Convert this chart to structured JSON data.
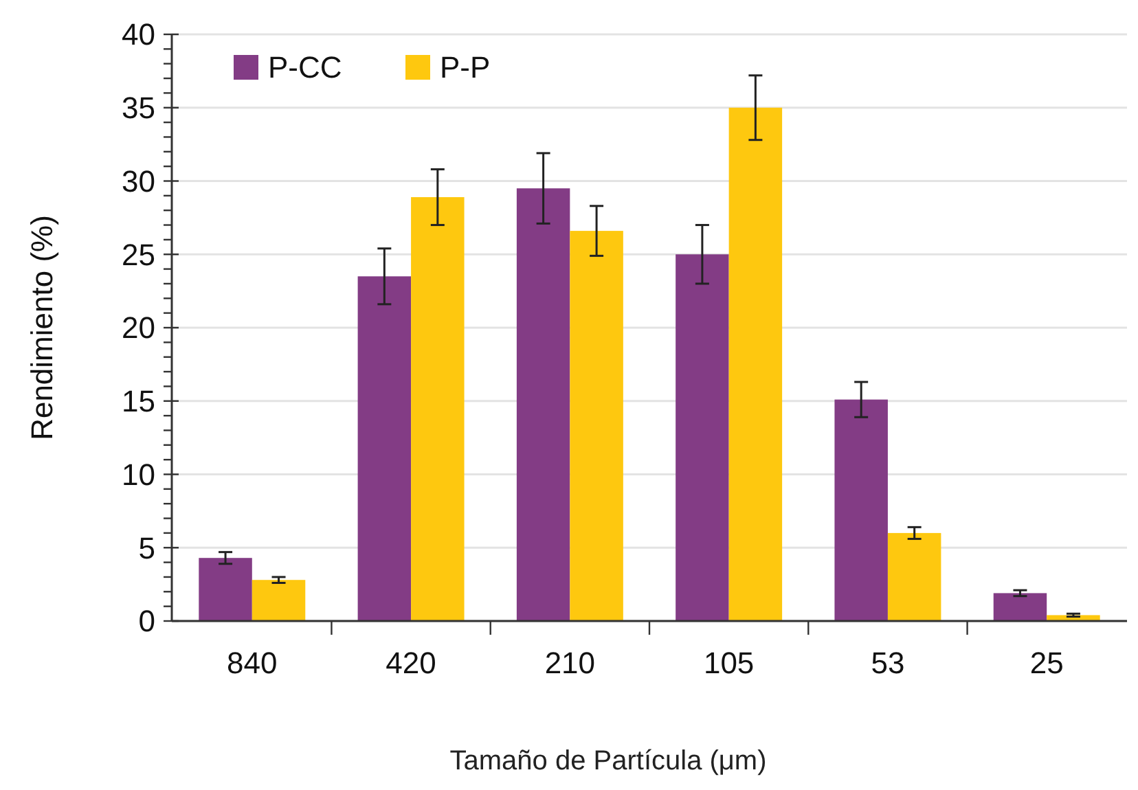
{
  "chart_data": {
    "type": "bar",
    "xlabel": "Tamaño de Partícula (μm)",
    "ylabel": "Rendimiento  (%)",
    "categories": [
      "840",
      "420",
      "210",
      "105",
      "53",
      "25"
    ],
    "series": [
      {
        "name": "P-CC",
        "color": "#833c85",
        "values": [
          4.3,
          23.5,
          29.5,
          25.0,
          15.1,
          1.9
        ],
        "errors": [
          0.4,
          1.9,
          2.4,
          2.0,
          1.2,
          0.2
        ]
      },
      {
        "name": "P-P",
        "color": "#fec80f",
        "values": [
          2.8,
          28.9,
          26.6,
          35.0,
          6.0,
          0.4
        ],
        "errors": [
          0.2,
          1.9,
          1.7,
          2.2,
          0.4,
          0.1
        ]
      }
    ],
    "ylim": [
      0,
      40
    ],
    "yticks": [
      0,
      {
        "value": 1,
        "label": null
      },
      {
        "value": 2,
        "label": null
      },
      {
        "value": 3,
        "label": null
      },
      {
        "value": 4,
        "label": null
      },
      5,
      {
        "value": 6,
        "label": null
      },
      {
        "value": 7,
        "label": null
      },
      {
        "value": 8,
        "label": null
      },
      {
        "value": 9,
        "label": null
      },
      10,
      {
        "value": 11,
        "label": null
      },
      {
        "value": 12,
        "label": null
      },
      {
        "value": 13,
        "label": null
      },
      {
        "value": 14,
        "label": null
      },
      15,
      {
        "value": 16,
        "label": null
      },
      {
        "value": 17,
        "label": null
      },
      {
        "value": 18,
        "label": null
      },
      {
        "value": 19,
        "label": null
      },
      20,
      {
        "value": 21,
        "label": null
      },
      {
        "value": 22,
        "label": null
      },
      {
        "value": 23,
        "label": null
      },
      {
        "value": 24,
        "label": null
      },
      25,
      {
        "value": 26,
        "label": null
      },
      {
        "value": 27,
        "label": null
      },
      {
        "value": 28,
        "label": null
      },
      {
        "value": 29,
        "label": null
      },
      30,
      {
        "value": 31,
        "label": null
      },
      {
        "value": 32,
        "label": null
      },
      {
        "value": 33,
        "label": null
      },
      {
        "value": 34,
        "label": null
      },
      35,
      {
        "value": 36,
        "label": null
      },
      {
        "value": 37,
        "label": null
      },
      {
        "value": 38,
        "label": null
      },
      {
        "value": 39,
        "label": null
      },
      40
    ],
    "grid": "y",
    "legend": "top left"
  }
}
